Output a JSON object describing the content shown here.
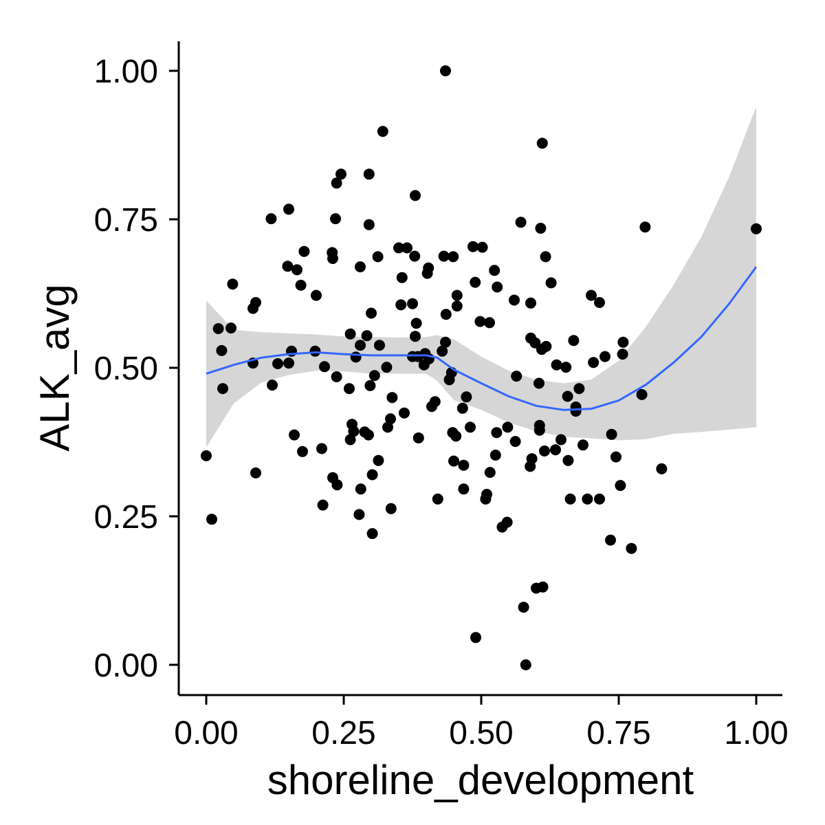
{
  "chart_data": {
    "type": "scatter",
    "xlabel": "shoreline_development",
    "ylabel": "ALK_avg",
    "xlim": [
      -0.05,
      1.05
    ],
    "ylim": [
      -0.05,
      1.05
    ],
    "xticks": [
      0.0,
      0.25,
      0.5,
      0.75,
      1.0
    ],
    "yticks": [
      0.0,
      0.25,
      0.5,
      0.75,
      1.0
    ],
    "xtick_labels": [
      "0.00",
      "0.25",
      "0.50",
      "0.75",
      "1.00"
    ],
    "ytick_labels": [
      "0.00",
      "0.25",
      "0.50",
      "0.75",
      "1.00"
    ],
    "grid": false,
    "legend": "none",
    "colors": {
      "points": "#000000",
      "smooth_line": "#3366ff",
      "confidence_band": "#c8c8c8"
    },
    "points": [
      [
        0.0,
        0.352
      ],
      [
        0.01,
        0.245
      ],
      [
        0.022,
        0.566
      ],
      [
        0.028,
        0.529
      ],
      [
        0.03,
        0.465
      ],
      [
        0.045,
        0.567
      ],
      [
        0.048,
        0.641
      ],
      [
        0.085,
        0.6
      ],
      [
        0.085,
        0.508
      ],
      [
        0.09,
        0.61
      ],
      [
        0.09,
        0.323
      ],
      [
        0.118,
        0.751
      ],
      [
        0.12,
        0.471
      ],
      [
        0.13,
        0.507
      ],
      [
        0.148,
        0.671
      ],
      [
        0.15,
        0.767
      ],
      [
        0.15,
        0.508
      ],
      [
        0.155,
        0.528
      ],
      [
        0.16,
        0.387
      ],
      [
        0.165,
        0.665
      ],
      [
        0.172,
        0.639
      ],
      [
        0.175,
        0.359
      ],
      [
        0.178,
        0.696
      ],
      [
        0.198,
        0.528
      ],
      [
        0.2,
        0.622
      ],
      [
        0.21,
        0.364
      ],
      [
        0.212,
        0.269
      ],
      [
        0.215,
        0.502
      ],
      [
        0.229,
        0.694
      ],
      [
        0.23,
        0.684
      ],
      [
        0.23,
        0.315
      ],
      [
        0.235,
        0.751
      ],
      [
        0.237,
        0.485
      ],
      [
        0.237,
        0.811
      ],
      [
        0.238,
        0.303
      ],
      [
        0.245,
        0.826
      ],
      [
        0.26,
        0.465
      ],
      [
        0.262,
        0.379
      ],
      [
        0.262,
        0.557
      ],
      [
        0.265,
        0.405
      ],
      [
        0.268,
        0.393
      ],
      [
        0.272,
        0.518
      ],
      [
        0.278,
        0.253
      ],
      [
        0.28,
        0.538
      ],
      [
        0.28,
        0.67
      ],
      [
        0.281,
        0.296
      ],
      [
        0.288,
        0.392
      ],
      [
        0.292,
        0.554
      ],
      [
        0.295,
        0.387
      ],
      [
        0.296,
        0.741
      ],
      [
        0.296,
        0.826
      ],
      [
        0.298,
        0.47
      ],
      [
        0.3,
        0.592
      ],
      [
        0.302,
        0.32
      ],
      [
        0.302,
        0.221
      ],
      [
        0.306,
        0.487
      ],
      [
        0.312,
        0.687
      ],
      [
        0.313,
        0.344
      ],
      [
        0.315,
        0.538
      ],
      [
        0.321,
        0.898
      ],
      [
        0.328,
        0.501
      ],
      [
        0.33,
        0.4
      ],
      [
        0.335,
        0.414
      ],
      [
        0.336,
        0.263
      ],
      [
        0.338,
        0.45
      ],
      [
        0.35,
        0.702
      ],
      [
        0.354,
        0.606
      ],
      [
        0.356,
        0.652
      ],
      [
        0.36,
        0.424
      ],
      [
        0.365,
        0.702
      ],
      [
        0.375,
        0.608
      ],
      [
        0.375,
        0.519
      ],
      [
        0.379,
        0.688
      ],
      [
        0.38,
        0.553
      ],
      [
        0.38,
        0.79
      ],
      [
        0.382,
        0.575
      ],
      [
        0.385,
        0.519
      ],
      [
        0.386,
        0.382
      ],
      [
        0.396,
        0.505
      ],
      [
        0.398,
        0.524
      ],
      [
        0.402,
        0.659
      ],
      [
        0.404,
        0.668
      ],
      [
        0.405,
        0.515
      ],
      [
        0.41,
        0.435
      ],
      [
        0.416,
        0.443
      ],
      [
        0.421,
        0.279
      ],
      [
        0.429,
        0.528
      ],
      [
        0.432,
        0.688
      ],
      [
        0.435,
        0.543
      ],
      [
        0.435,
        1.0
      ],
      [
        0.436,
        0.59
      ],
      [
        0.442,
        0.48
      ],
      [
        0.446,
        0.492
      ],
      [
        0.448,
        0.391
      ],
      [
        0.449,
        0.687
      ],
      [
        0.45,
        0.343
      ],
      [
        0.454,
        0.385
      ],
      [
        0.456,
        0.622
      ],
      [
        0.456,
        0.604
      ],
      [
        0.466,
        0.432
      ],
      [
        0.468,
        0.336
      ],
      [
        0.468,
        0.296
      ],
      [
        0.473,
        0.451
      ],
      [
        0.48,
        0.4
      ],
      [
        0.485,
        0.704
      ],
      [
        0.489,
        0.644
      ],
      [
        0.49,
        0.046
      ],
      [
        0.498,
        0.578
      ],
      [
        0.502,
        0.703
      ],
      [
        0.508,
        0.279
      ],
      [
        0.51,
        0.287
      ],
      [
        0.515,
        0.576
      ],
      [
        0.516,
        0.324
      ],
      [
        0.524,
        0.664
      ],
      [
        0.526,
        0.353
      ],
      [
        0.528,
        0.391
      ],
      [
        0.529,
        0.636
      ],
      [
        0.538,
        0.232
      ],
      [
        0.547,
        0.24
      ],
      [
        0.548,
        0.4
      ],
      [
        0.56,
        0.614
      ],
      [
        0.562,
        0.376
      ],
      [
        0.564,
        0.486
      ],
      [
        0.572,
        0.745
      ],
      [
        0.577,
        0.097
      ],
      [
        0.581,
        0.0
      ],
      [
        0.589,
        0.334
      ],
      [
        0.59,
        0.609
      ],
      [
        0.59,
        0.55
      ],
      [
        0.592,
        0.347
      ],
      [
        0.598,
        0.542
      ],
      [
        0.6,
        0.129
      ],
      [
        0.605,
        0.474
      ],
      [
        0.606,
        0.403
      ],
      [
        0.606,
        0.395
      ],
      [
        0.608,
        0.735
      ],
      [
        0.61,
        0.531
      ],
      [
        0.611,
        0.878
      ],
      [
        0.612,
        0.131
      ],
      [
        0.615,
        0.36
      ],
      [
        0.617,
        0.687
      ],
      [
        0.618,
        0.536
      ],
      [
        0.627,
        0.643
      ],
      [
        0.635,
        0.362
      ],
      [
        0.637,
        0.505
      ],
      [
        0.645,
        0.379
      ],
      [
        0.654,
        0.501
      ],
      [
        0.657,
        0.452
      ],
      [
        0.658,
        0.344
      ],
      [
        0.662,
        0.279
      ],
      [
        0.668,
        0.546
      ],
      [
        0.672,
        0.434
      ],
      [
        0.672,
        0.427
      ],
      [
        0.678,
        0.465
      ],
      [
        0.685,
        0.37
      ],
      [
        0.693,
        0.279
      ],
      [
        0.7,
        0.622
      ],
      [
        0.704,
        0.509
      ],
      [
        0.715,
        0.61
      ],
      [
        0.715,
        0.279
      ],
      [
        0.725,
        0.519
      ],
      [
        0.735,
        0.21
      ],
      [
        0.737,
        0.388
      ],
      [
        0.745,
        0.35
      ],
      [
        0.753,
        0.302
      ],
      [
        0.757,
        0.523
      ],
      [
        0.758,
        0.543
      ],
      [
        0.773,
        0.196
      ],
      [
        0.792,
        0.455
      ],
      [
        0.798,
        0.737
      ],
      [
        0.828,
        0.33
      ],
      [
        1.0,
        0.734
      ]
    ],
    "smooth": {
      "x": [
        0.0,
        0.05,
        0.1,
        0.15,
        0.2,
        0.25,
        0.3,
        0.35,
        0.4,
        0.42,
        0.45,
        0.5,
        0.55,
        0.6,
        0.65,
        0.7,
        0.75,
        0.8,
        0.85,
        0.9,
        0.95,
        1.0
      ],
      "y": [
        0.49,
        0.505,
        0.517,
        0.523,
        0.526,
        0.523,
        0.521,
        0.521,
        0.521,
        0.517,
        0.497,
        0.474,
        0.452,
        0.436,
        0.429,
        0.431,
        0.445,
        0.472,
        0.509,
        0.552,
        0.607,
        0.67
      ],
      "upper": [
        0.613,
        0.564,
        0.56,
        0.558,
        0.556,
        0.553,
        0.552,
        0.551,
        0.552,
        0.555,
        0.548,
        0.519,
        0.495,
        0.48,
        0.474,
        0.48,
        0.512,
        0.57,
        0.64,
        0.72,
        0.82,
        0.94
      ],
      "lower": [
        0.366,
        0.44,
        0.475,
        0.488,
        0.495,
        0.494,
        0.49,
        0.49,
        0.49,
        0.478,
        0.446,
        0.429,
        0.408,
        0.393,
        0.384,
        0.381,
        0.378,
        0.38,
        0.389,
        0.392,
        0.396,
        0.4
      ]
    }
  }
}
